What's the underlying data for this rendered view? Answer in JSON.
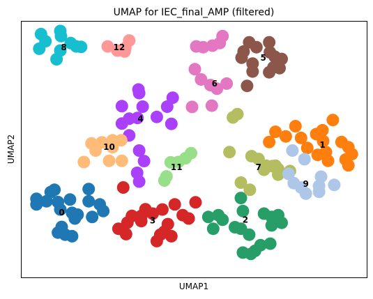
{
  "chart_data": {
    "type": "scatter",
    "title": "UMAP for IEC_final_AMP (filtered)",
    "xlabel": "UMAP1",
    "ylabel": "UMAP2",
    "xlim": [
      0,
      100
    ],
    "ylim": [
      0,
      100
    ],
    "grid": false,
    "legend": "none",
    "series": [
      {
        "name": "0",
        "color": "#1f77b4",
        "label_at": [
          11.7,
          25.4
        ],
        "points": [
          [
            9.6,
            34.3
          ],
          [
            8.5,
            33.4
          ],
          [
            4.4,
            30.8
          ],
          [
            4.4,
            28.6
          ],
          [
            7.3,
            29.8
          ],
          [
            10.6,
            29.5
          ],
          [
            14.1,
            30.5
          ],
          [
            11.3,
            26.6
          ],
          [
            14.7,
            25.3
          ],
          [
            11.7,
            19.8
          ],
          [
            10.6,
            17.6
          ],
          [
            12.7,
            16.8
          ],
          [
            14.7,
            16.2
          ],
          [
            15.5,
            23.1
          ],
          [
            16.3,
            24.6
          ],
          [
            19.5,
            29.8
          ],
          [
            19.5,
            34.6
          ],
          [
            22.7,
            28.6
          ],
          [
            23.7,
            26.0
          ],
          [
            20.5,
            23.7
          ]
        ]
      },
      {
        "name": "1",
        "color": "#ff7f0e",
        "label_at": [
          87.1,
          51.8
        ],
        "points": [
          [
            71.7,
            52.9
          ],
          [
            73.5,
            56.9
          ],
          [
            76.5,
            55.1
          ],
          [
            79.3,
            59.1
          ],
          [
            80.9,
            54.5
          ],
          [
            82.7,
            50.6
          ],
          [
            85.3,
            56.0
          ],
          [
            87.1,
            57.5
          ],
          [
            87.3,
            53.3
          ],
          [
            88.1,
            49.0
          ],
          [
            90.1,
            61.5
          ],
          [
            92.6,
            52.9
          ],
          [
            94.6,
            50.9
          ],
          [
            95.6,
            48.2
          ],
          [
            94.6,
            43.8
          ],
          [
            88.7,
            45.6
          ],
          [
            85.7,
            47.9
          ],
          [
            93.8,
            46.1
          ]
        ]
      },
      {
        "name": "2",
        "color": "#279e68",
        "label_at": [
          64.8,
          22.6
        ],
        "points": [
          [
            54.1,
            23.7
          ],
          [
            57.0,
            24.4
          ],
          [
            58.2,
            22.6
          ],
          [
            55.5,
            19.1
          ],
          [
            63.5,
            31.1
          ],
          [
            64.1,
            26.0
          ],
          [
            63.5,
            19.1
          ],
          [
            61.8,
            19.7
          ],
          [
            65.9,
            16.8
          ],
          [
            72.4,
            23.7
          ],
          [
            74.3,
            24.4
          ],
          [
            75.3,
            21.4
          ],
          [
            72.4,
            20.4
          ],
          [
            72.0,
            13.3
          ],
          [
            69.2,
            12.7
          ],
          [
            67.6,
            10.5
          ],
          [
            66.4,
            9.3
          ],
          [
            64.1,
            9.8
          ],
          [
            70.2,
            25.0
          ]
        ]
      },
      {
        "name": "3",
        "color": "#d62728",
        "label_at": [
          38.0,
          22.3
        ],
        "points": [
          [
            29.5,
            35.2
          ],
          [
            32.0,
            24.1
          ],
          [
            34.7,
            24.1
          ],
          [
            35.9,
            26.7
          ],
          [
            28.1,
            19.1
          ],
          [
            30.3,
            17.0
          ],
          [
            34.7,
            22.1
          ],
          [
            30.7,
            21.5
          ],
          [
            38.0,
            25.0
          ],
          [
            40.8,
            26.6
          ],
          [
            44.4,
            28.6
          ],
          [
            42.4,
            20.9
          ],
          [
            40.2,
            16.8
          ],
          [
            39.2,
            14.3
          ],
          [
            41.4,
            18.0
          ],
          [
            43.4,
            16.2
          ],
          [
            46.7,
            24.4
          ],
          [
            48.4,
            23.1
          ],
          [
            50.4,
            29.4
          ]
        ]
      },
      {
        "name": "4",
        "color": "#aa40fc",
        "label_at": [
          34.5,
          62.0
        ],
        "points": [
          [
            43.8,
            70.2
          ],
          [
            34.1,
            72.0
          ],
          [
            35.1,
            66.7
          ],
          [
            33.9,
            73.4
          ],
          [
            29.1,
            66.9
          ],
          [
            31.2,
            62.0
          ],
          [
            33.6,
            62.3
          ],
          [
            39.2,
            62.7
          ],
          [
            42.2,
            66.7
          ],
          [
            43.4,
            60.0
          ],
          [
            31.2,
            55.5
          ],
          [
            29.1,
            60.1
          ],
          [
            34.1,
            49.6
          ],
          [
            33.5,
            40.9
          ],
          [
            34.1,
            37.5
          ],
          [
            35.5,
            45.5
          ]
        ]
      },
      {
        "name": "5",
        "color": "#8c564b",
        "label_at": [
          70.0,
          85.8
        ],
        "points": [
          [
            64.3,
            88.2
          ],
          [
            63.7,
            85.8
          ],
          [
            65.9,
            91.8
          ],
          [
            66.9,
            83.5
          ],
          [
            68.0,
            89.9
          ],
          [
            71.7,
            91.8
          ],
          [
            71.9,
            87.9
          ],
          [
            73.3,
            86.2
          ],
          [
            75.3,
            85.3
          ],
          [
            72.9,
            82.0
          ],
          [
            74.7,
            81.7
          ],
          [
            71.7,
            80.1
          ],
          [
            66.9,
            80.4
          ],
          [
            65.3,
            74.8
          ]
        ]
      },
      {
        "name": "6",
        "color": "#e377c2",
        "label_at": [
          55.9,
          75.7
        ],
        "points": [
          [
            50.6,
            90.2
          ],
          [
            52.6,
            89.9
          ],
          [
            55.3,
            90.5
          ],
          [
            57.4,
            91.5
          ],
          [
            58.2,
            94.2
          ],
          [
            50.2,
            81.3
          ],
          [
            52.0,
            77.3
          ],
          [
            54.7,
            75.1
          ],
          [
            56.6,
            73.7
          ],
          [
            59.4,
            75.7
          ],
          [
            55.1,
            67.1
          ],
          [
            49.4,
            66.6
          ]
        ]
      },
      {
        "name": "7",
        "color": "#b5bd61",
        "label_at": [
          68.6,
          43.1
        ],
        "points": [
          [
            61.2,
            62.5
          ],
          [
            62.5,
            63.8
          ],
          [
            60.2,
            49.0
          ],
          [
            66.6,
            47.4
          ],
          [
            68.6,
            46.3
          ],
          [
            70.8,
            43.7
          ],
          [
            72.6,
            43.5
          ],
          [
            74.3,
            42.4
          ],
          [
            74.3,
            40.2
          ],
          [
            70.2,
            42.1
          ],
          [
            73.5,
            43.7
          ],
          [
            77.7,
            41.6
          ],
          [
            63.5,
            37.1
          ],
          [
            66.1,
            34.3
          ]
        ]
      },
      {
        "name": "8",
        "color": "#17becf",
        "label_at": [
          12.3,
          89.8
        ],
        "points": [
          [
            5.7,
            95.0
          ],
          [
            11.3,
            96.2
          ],
          [
            11.5,
            94.2
          ],
          [
            7.0,
            92.2
          ],
          [
            14.3,
            91.5
          ],
          [
            5.2,
            89.3
          ],
          [
            11.3,
            88.6
          ],
          [
            15.9,
            90.2
          ],
          [
            17.3,
            90.0
          ],
          [
            10.2,
            85.2
          ]
        ]
      },
      {
        "name": "9",
        "color": "#aec7e8",
        "label_at": [
          82.3,
          36.5
        ],
        "points": [
          [
            78.4,
            49.6
          ],
          [
            81.9,
            46.2
          ],
          [
            77.3,
            40.5
          ],
          [
            78.8,
            36.9
          ],
          [
            80.9,
            35.2
          ],
          [
            82.3,
            32.8
          ],
          [
            86.1,
            35.8
          ],
          [
            86.7,
            39.4
          ],
          [
            90.5,
            36.2
          ],
          [
            86.1,
            33.5
          ]
        ]
      },
      {
        "name": "10",
        "color": "#ffbb78",
        "label_at": [
          25.4,
          50.9
        ],
        "points": [
          [
            20.3,
            52.4
          ],
          [
            23.3,
            52.8
          ],
          [
            26.4,
            53.6
          ],
          [
            28.9,
            53.6
          ],
          [
            26.4,
            50.9
          ],
          [
            21.5,
            49.6
          ],
          [
            18.1,
            45.1
          ],
          [
            25.4,
            45.6
          ],
          [
            29.1,
            45.6
          ]
        ]
      },
      {
        "name": "11",
        "color": "#98df8a",
        "label_at": [
          44.9,
          43.1
        ],
        "points": [
          [
            43.2,
            45.0
          ],
          [
            45.4,
            45.1
          ],
          [
            47.5,
            46.6
          ],
          [
            49.1,
            48.6
          ],
          [
            42.0,
            39.5
          ],
          [
            41.4,
            37.9
          ]
        ]
      },
      {
        "name": "12",
        "color": "#ff9896",
        "label_at": [
          28.3,
          89.8
        ],
        "points": [
          [
            25.0,
            90.2
          ],
          [
            31.2,
            92.5
          ],
          [
            30.1,
            89.6
          ],
          [
            27.8,
            88.6
          ],
          [
            29.9,
            88.2
          ]
        ]
      }
    ]
  }
}
